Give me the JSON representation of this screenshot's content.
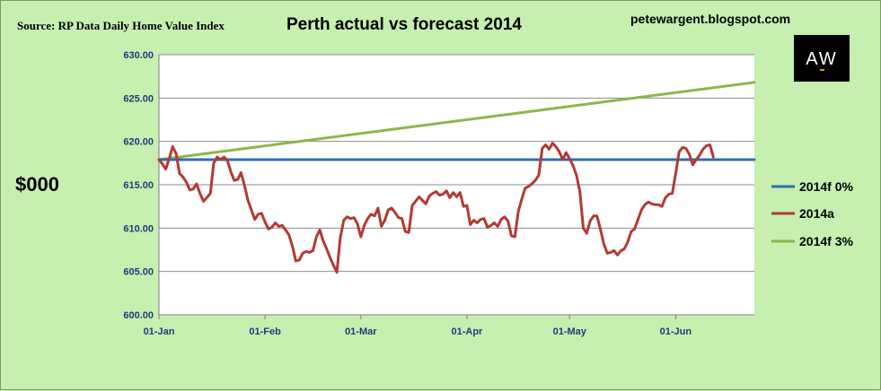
{
  "header": {
    "source": "Source: RP Data Daily Home Value Index",
    "blog": "petewargent.blogspot.com",
    "logo_text": "AW"
  },
  "chart_data": {
    "type": "line",
    "title": "Perth actual vs forecast 2014",
    "ylabel": "$000",
    "ylim": [
      600,
      630
    ],
    "yticks": [
      "600.00",
      "605.00",
      "610.00",
      "615.00",
      "620.00",
      "625.00",
      "630.00"
    ],
    "xticks": [
      {
        "label": "01-Jan",
        "day": 0
      },
      {
        "label": "01-Feb",
        "day": 31
      },
      {
        "label": "01-Mar",
        "day": 59
      },
      {
        "label": "01-Apr",
        "day": 90
      },
      {
        "label": "01-May",
        "day": 120
      },
      {
        "label": "01-Jun",
        "day": 151
      }
    ],
    "xlim_days": [
      0,
      174
    ],
    "grid": true,
    "legend_position": "right",
    "series": [
      {
        "name": "2014f 0%",
        "color": "#2e6fb0",
        "points": [
          [
            0,
            617.9
          ],
          [
            174,
            617.9
          ]
        ]
      },
      {
        "name": "2014a",
        "color": "#b33a33",
        "points": [
          [
            0,
            617.9
          ],
          [
            1,
            617.4
          ],
          [
            2,
            616.8
          ],
          [
            3,
            618.0
          ],
          [
            4,
            619.4
          ],
          [
            5,
            618.6
          ],
          [
            6,
            616.3
          ],
          [
            7,
            615.9
          ],
          [
            8,
            615.3
          ],
          [
            9,
            614.4
          ],
          [
            10,
            614.5
          ],
          [
            11,
            615.1
          ],
          [
            12,
            614.0
          ],
          [
            13,
            613.1
          ],
          [
            14,
            613.5
          ],
          [
            15,
            614.0
          ],
          [
            16,
            617.5
          ],
          [
            17,
            618.2
          ],
          [
            18,
            617.9
          ],
          [
            19,
            618.2
          ],
          [
            20,
            617.8
          ],
          [
            21,
            616.5
          ],
          [
            22,
            615.5
          ],
          [
            23,
            615.6
          ],
          [
            24,
            616.4
          ],
          [
            25,
            614.9
          ],
          [
            26,
            613.2
          ],
          [
            27,
            612.1
          ],
          [
            28,
            611.0
          ],
          [
            29,
            611.6
          ],
          [
            30,
            611.7
          ],
          [
            31,
            610.7
          ],
          [
            32,
            609.9
          ],
          [
            33,
            610.1
          ],
          [
            34,
            610.6
          ],
          [
            35,
            610.2
          ],
          [
            36,
            610.3
          ],
          [
            37,
            609.8
          ],
          [
            38,
            609.2
          ],
          [
            39,
            607.9
          ],
          [
            40,
            606.2
          ],
          [
            41,
            606.3
          ],
          [
            42,
            607.1
          ],
          [
            43,
            607.3
          ],
          [
            44,
            607.2
          ],
          [
            45,
            607.4
          ],
          [
            46,
            609.0
          ],
          [
            47,
            609.8
          ],
          [
            48,
            608.5
          ],
          [
            49,
            607.6
          ],
          [
            50,
            606.6
          ],
          [
            51,
            605.7
          ],
          [
            52,
            604.9
          ],
          [
            53,
            608.9
          ],
          [
            54,
            610.9
          ],
          [
            55,
            611.3
          ],
          [
            56,
            611.1
          ],
          [
            57,
            611.2
          ],
          [
            58,
            610.5
          ],
          [
            59,
            609.0
          ],
          [
            60,
            610.3
          ],
          [
            61,
            611.1
          ],
          [
            62,
            611.6
          ],
          [
            63,
            611.4
          ],
          [
            64,
            612.3
          ],
          [
            65,
            610.2
          ],
          [
            66,
            610.9
          ],
          [
            67,
            612.1
          ],
          [
            68,
            612.3
          ],
          [
            69,
            611.8
          ],
          [
            70,
            611.2
          ],
          [
            71,
            611.1
          ],
          [
            72,
            609.6
          ],
          [
            73,
            609.5
          ],
          [
            74,
            612.6
          ],
          [
            75,
            613.1
          ],
          [
            76,
            613.6
          ],
          [
            77,
            613.2
          ],
          [
            78,
            612.8
          ],
          [
            79,
            613.7
          ],
          [
            80,
            614.0
          ],
          [
            81,
            614.2
          ],
          [
            82,
            613.8
          ],
          [
            83,
            613.9
          ],
          [
            84,
            614.3
          ],
          [
            85,
            613.5
          ],
          [
            86,
            614.1
          ],
          [
            87,
            613.6
          ],
          [
            88,
            614.1
          ],
          [
            89,
            612.5
          ],
          [
            90,
            612.6
          ],
          [
            91,
            610.4
          ],
          [
            92,
            610.9
          ],
          [
            93,
            610.6
          ],
          [
            94,
            611.0
          ],
          [
            95,
            611.1
          ],
          [
            96,
            610.1
          ],
          [
            97,
            610.3
          ],
          [
            98,
            610.6
          ],
          [
            99,
            610.2
          ],
          [
            100,
            611.0
          ],
          [
            101,
            611.3
          ],
          [
            102,
            610.8
          ],
          [
            103,
            609.1
          ],
          [
            104,
            609.0
          ],
          [
            105,
            611.9
          ],
          [
            106,
            613.3
          ],
          [
            107,
            614.6
          ],
          [
            108,
            614.8
          ],
          [
            109,
            615.1
          ],
          [
            110,
            615.5
          ],
          [
            111,
            616.1
          ],
          [
            112,
            619.2
          ],
          [
            113,
            619.6
          ],
          [
            114,
            619.1
          ],
          [
            115,
            619.8
          ],
          [
            116,
            619.4
          ],
          [
            117,
            618.8
          ],
          [
            118,
            617.9
          ],
          [
            119,
            618.7
          ],
          [
            120,
            618.0
          ],
          [
            121,
            617.2
          ],
          [
            122,
            616.1
          ],
          [
            123,
            614.2
          ],
          [
            124,
            610.0
          ],
          [
            125,
            609.4
          ],
          [
            126,
            610.8
          ],
          [
            127,
            611.4
          ],
          [
            128,
            611.4
          ],
          [
            129,
            609.9
          ],
          [
            130,
            608.2
          ],
          [
            131,
            607.1
          ],
          [
            132,
            607.2
          ],
          [
            133,
            607.4
          ],
          [
            134,
            606.9
          ],
          [
            135,
            607.4
          ],
          [
            136,
            607.6
          ],
          [
            137,
            608.4
          ],
          [
            138,
            609.6
          ],
          [
            139,
            609.9
          ],
          [
            140,
            611.0
          ],
          [
            141,
            612.1
          ],
          [
            142,
            612.7
          ],
          [
            143,
            613.0
          ],
          [
            144,
            612.8
          ],
          [
            145,
            612.7
          ],
          [
            146,
            612.7
          ],
          [
            147,
            612.5
          ],
          [
            148,
            613.5
          ],
          [
            149,
            613.9
          ],
          [
            150,
            614.0
          ],
          [
            151,
            616.3
          ],
          [
            152,
            618.8
          ],
          [
            153,
            619.3
          ],
          [
            154,
            619.2
          ],
          [
            155,
            618.5
          ],
          [
            156,
            617.3
          ],
          [
            157,
            617.9
          ],
          [
            158,
            618.4
          ],
          [
            159,
            619.1
          ],
          [
            160,
            619.5
          ],
          [
            161,
            619.6
          ],
          [
            162,
            618.2
          ]
        ]
      },
      {
        "name": "2014f 3%",
        "color": "#8db64b",
        "points": [
          [
            0,
            617.9
          ],
          [
            174,
            626.8
          ]
        ]
      }
    ]
  }
}
